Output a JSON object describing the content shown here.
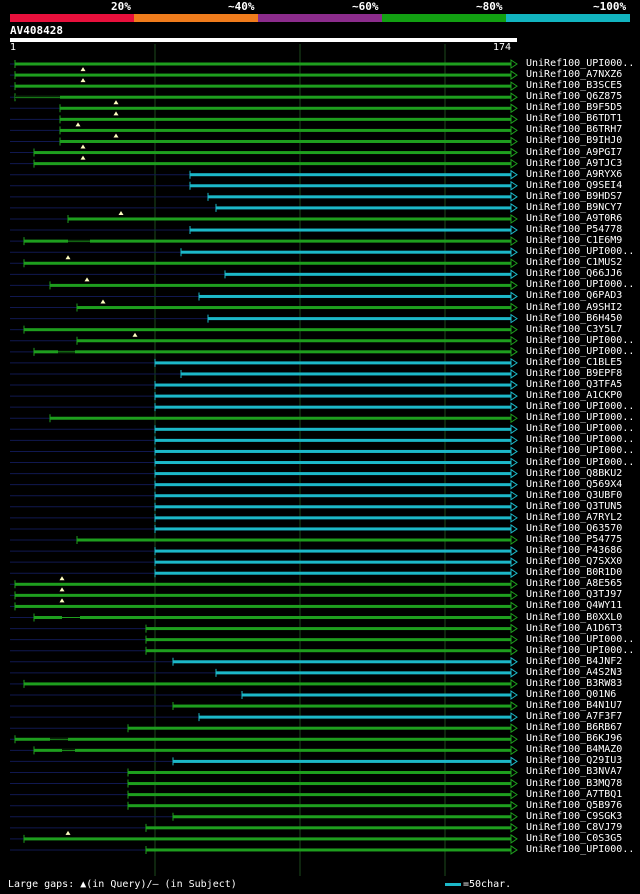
{
  "legend": {
    "labels": [
      "20%",
      "~40%",
      "~60%",
      "~80%",
      "~100%"
    ],
    "colors": [
      "#e8103c",
      "#f07c1c",
      "#8c2c8c",
      "#12a012",
      "#12b4c0"
    ]
  },
  "query": {
    "id": "AV408428",
    "start": "1",
    "end": "174"
  },
  "footer": {
    "gaps_note": "Large gaps: ▲(in Query)/— (in Subject)",
    "scale_note": "=50char."
  },
  "colors": {
    "green": "#1e9e1e",
    "cyan": "#1cb8c8",
    "faint": "#101850",
    "grid": "#1c4a1c"
  },
  "hits": [
    {
      "label": "UniRef100_UPI000..",
      "start": 15,
      "end": 511,
      "color": "green",
      "gaps": []
    },
    {
      "label": "UniRef100_A7NXZ6",
      "start": 15,
      "end": 511,
      "color": "green",
      "gaps": [
        83
      ]
    },
    {
      "label": "UniRef100_B3SCE5",
      "start": 15,
      "end": 511,
      "color": "green",
      "gaps": [
        83
      ]
    },
    {
      "label": "UniRef100_Q6Z875",
      "start": 15,
      "end": 511,
      "color": "green",
      "gaps": [],
      "line": [
        15,
        60
      ]
    },
    {
      "label": "UniRef100_B9F5D5",
      "start": 60,
      "end": 511,
      "color": "green",
      "gaps": [
        116
      ]
    },
    {
      "label": "UniRef100_B6TDT1",
      "start": 60,
      "end": 511,
      "color": "green",
      "gaps": [
        116
      ]
    },
    {
      "label": "UniRef100_B6TRH7",
      "start": 60,
      "end": 511,
      "color": "green",
      "gaps": [
        78
      ]
    },
    {
      "label": "UniRef100_B9IHJ0",
      "start": 60,
      "end": 511,
      "color": "green",
      "gaps": [
        116
      ]
    },
    {
      "label": "UniRef100_A9PGI7",
      "start": 34,
      "end": 511,
      "color": "green",
      "gaps": [
        83
      ]
    },
    {
      "label": "UniRef100_A9TJC3",
      "start": 34,
      "end": 511,
      "color": "green",
      "gaps": [
        83
      ]
    },
    {
      "label": "UniRef100_A9RYX6",
      "start": 190,
      "end": 511,
      "color": "cyan",
      "gaps": []
    },
    {
      "label": "UniRef100_Q9SEI4",
      "start": 190,
      "end": 511,
      "color": "cyan",
      "gaps": []
    },
    {
      "label": "UniRef100_B9HDS7",
      "start": 208,
      "end": 511,
      "color": "cyan",
      "gaps": []
    },
    {
      "label": "UniRef100_B9NCY7",
      "start": 216,
      "end": 511,
      "color": "cyan",
      "gaps": []
    },
    {
      "label": "UniRef100_A9T0R6",
      "start": 68,
      "end": 511,
      "color": "green",
      "gaps": [
        121
      ]
    },
    {
      "label": "UniRef100_P54778",
      "start": 190,
      "end": 511,
      "color": "cyan",
      "gaps": []
    },
    {
      "label": "UniRef100_C1E6M9",
      "start": 24,
      "end": 511,
      "color": "green",
      "gaps": [],
      "line": [
        68,
        90
      ]
    },
    {
      "label": "UniRef100_UPI000..",
      "start": 181,
      "end": 511,
      "color": "cyan",
      "gaps": []
    },
    {
      "label": "UniRef100_C1MUS2",
      "start": 24,
      "end": 511,
      "color": "green",
      "gaps": [
        68
      ]
    },
    {
      "label": "UniRef100_Q66JJ6",
      "start": 225,
      "end": 511,
      "color": "cyan",
      "gaps": []
    },
    {
      "label": "UniRef100_UPI000..",
      "start": 50,
      "end": 511,
      "color": "green",
      "gaps": [
        87
      ]
    },
    {
      "label": "UniRef100_Q6PAD3",
      "start": 199,
      "end": 511,
      "color": "cyan",
      "gaps": []
    },
    {
      "label": "UniRef100_A9SHI2",
      "start": 77,
      "end": 511,
      "color": "green",
      "gaps": [
        103
      ]
    },
    {
      "label": "UniRef100_B6H450",
      "start": 208,
      "end": 511,
      "color": "cyan",
      "gaps": []
    },
    {
      "label": "UniRef100_C3Y5L7",
      "start": 24,
      "end": 511,
      "color": "green",
      "gaps": []
    },
    {
      "label": "UniRef100_UPI000..",
      "start": 77,
      "end": 511,
      "color": "green",
      "gaps": [
        135
      ]
    },
    {
      "label": "UniRef100_UPI000..",
      "start": 34,
      "end": 511,
      "color": "green",
      "gaps": [],
      "line": [
        58,
        75
      ]
    },
    {
      "label": "UniRef100_C1BLE5",
      "start": 155,
      "end": 511,
      "color": "cyan",
      "gaps": []
    },
    {
      "label": "UniRef100_B9EPF8",
      "start": 181,
      "end": 511,
      "color": "cyan",
      "gaps": []
    },
    {
      "label": "UniRef100_Q3TFA5",
      "start": 155,
      "end": 511,
      "color": "cyan",
      "gaps": []
    },
    {
      "label": "UniRef100_A1CKP0",
      "start": 155,
      "end": 511,
      "color": "cyan",
      "gaps": []
    },
    {
      "label": "UniRef100_UPI000..",
      "start": 155,
      "end": 511,
      "color": "cyan",
      "gaps": []
    },
    {
      "label": "UniRef100_UPI000..",
      "start": 50,
      "end": 511,
      "color": "green",
      "gaps": []
    },
    {
      "label": "UniRef100_UPI000..",
      "start": 155,
      "end": 511,
      "color": "cyan",
      "gaps": []
    },
    {
      "label": "UniRef100_UPI000..",
      "start": 155,
      "end": 511,
      "color": "cyan",
      "gaps": []
    },
    {
      "label": "UniRef100_UPI000..",
      "start": 155,
      "end": 511,
      "color": "cyan",
      "gaps": []
    },
    {
      "label": "UniRef100_UPI000..",
      "start": 155,
      "end": 511,
      "color": "cyan",
      "gaps": []
    },
    {
      "label": "UniRef100_Q8BKU2",
      "start": 155,
      "end": 511,
      "color": "cyan",
      "gaps": []
    },
    {
      "label": "UniRef100_Q569X4",
      "start": 155,
      "end": 511,
      "color": "cyan",
      "gaps": []
    },
    {
      "label": "UniRef100_Q3UBF0",
      "start": 155,
      "end": 511,
      "color": "cyan",
      "gaps": []
    },
    {
      "label": "UniRef100_Q3TUN5",
      "start": 155,
      "end": 511,
      "color": "cyan",
      "gaps": []
    },
    {
      "label": "UniRef100_A7RYL2",
      "start": 155,
      "end": 511,
      "color": "cyan",
      "gaps": []
    },
    {
      "label": "UniRef100_Q63570",
      "start": 155,
      "end": 511,
      "color": "cyan",
      "gaps": []
    },
    {
      "label": "UniRef100_P54775",
      "start": 77,
      "end": 511,
      "color": "green",
      "gaps": []
    },
    {
      "label": "UniRef100_P43686",
      "start": 155,
      "end": 511,
      "color": "cyan",
      "gaps": []
    },
    {
      "label": "UniRef100_Q7SXX0",
      "start": 155,
      "end": 511,
      "color": "cyan",
      "gaps": []
    },
    {
      "label": "UniRef100_B0R1D0",
      "start": 155,
      "end": 511,
      "color": "cyan",
      "gaps": []
    },
    {
      "label": "UniRef100_A8E565",
      "start": 15,
      "end": 511,
      "color": "green",
      "gaps": [
        62
      ]
    },
    {
      "label": "UniRef100_Q3TJ97",
      "start": 15,
      "end": 511,
      "color": "green",
      "gaps": [
        62
      ]
    },
    {
      "label": "UniRef100_Q4WY11",
      "start": 15,
      "end": 511,
      "color": "green",
      "gaps": [
        62
      ]
    },
    {
      "label": "UniRef100_B0XXL0",
      "start": 34,
      "end": 511,
      "color": "green",
      "gaps": [],
      "line": [
        62,
        80
      ]
    },
    {
      "label": "UniRef100_A1D6T3",
      "start": 146,
      "end": 511,
      "color": "green",
      "gaps": []
    },
    {
      "label": "UniRef100_UPI000..",
      "start": 146,
      "end": 511,
      "color": "green",
      "gaps": []
    },
    {
      "label": "UniRef100_UPI000..",
      "start": 146,
      "end": 511,
      "color": "green",
      "gaps": []
    },
    {
      "label": "UniRef100_B4JNF2",
      "start": 173,
      "end": 511,
      "color": "cyan",
      "gaps": []
    },
    {
      "label": "UniRef100_A4S2N3",
      "start": 216,
      "end": 511,
      "color": "cyan",
      "gaps": []
    },
    {
      "label": "UniRef100_B3RW83",
      "start": 24,
      "end": 511,
      "color": "green",
      "gaps": []
    },
    {
      "label": "UniRef100_Q01N6",
      "start": 242,
      "end": 511,
      "color": "cyan",
      "gaps": []
    },
    {
      "label": "UniRef100_B4N1U7",
      "start": 173,
      "end": 511,
      "color": "green",
      "gaps": []
    },
    {
      "label": "UniRef100_A7F3F7",
      "start": 199,
      "end": 511,
      "color": "cyan",
      "gaps": []
    },
    {
      "label": "UniRef100_B6RB67",
      "start": 128,
      "end": 511,
      "color": "green",
      "gaps": []
    },
    {
      "label": "UniRef100_B6KJ96",
      "start": 15,
      "end": 511,
      "color": "green",
      "gaps": [],
      "line": [
        50,
        68
      ]
    },
    {
      "label": "UniRef100_B4MAZ0",
      "start": 34,
      "end": 511,
      "color": "green",
      "gaps": [],
      "line": [
        62,
        75
      ]
    },
    {
      "label": "UniRef100_Q29IU3",
      "start": 173,
      "end": 511,
      "color": "cyan",
      "gaps": []
    },
    {
      "label": "UniRef100_B3NVA7",
      "start": 128,
      "end": 511,
      "color": "green",
      "gaps": []
    },
    {
      "label": "UniRef100_B3MQ78",
      "start": 128,
      "end": 511,
      "color": "green",
      "gaps": []
    },
    {
      "label": "UniRef100_A7TBQ1",
      "start": 128,
      "end": 511,
      "color": "green",
      "gaps": []
    },
    {
      "label": "UniRef100_Q5B976",
      "start": 128,
      "end": 511,
      "color": "green",
      "gaps": []
    },
    {
      "label": "UniRef100_C9SGK3",
      "start": 173,
      "end": 511,
      "color": "green",
      "gaps": []
    },
    {
      "label": "UniRef100_C8VJ79",
      "start": 146,
      "end": 511,
      "color": "green",
      "gaps": []
    },
    {
      "label": "UniRef100_C0S3G5",
      "start": 24,
      "end": 511,
      "color": "green",
      "gaps": [
        68
      ]
    },
    {
      "label": "UniRef100_UPI000..",
      "start": 146,
      "end": 511,
      "color": "green",
      "gaps": []
    }
  ]
}
